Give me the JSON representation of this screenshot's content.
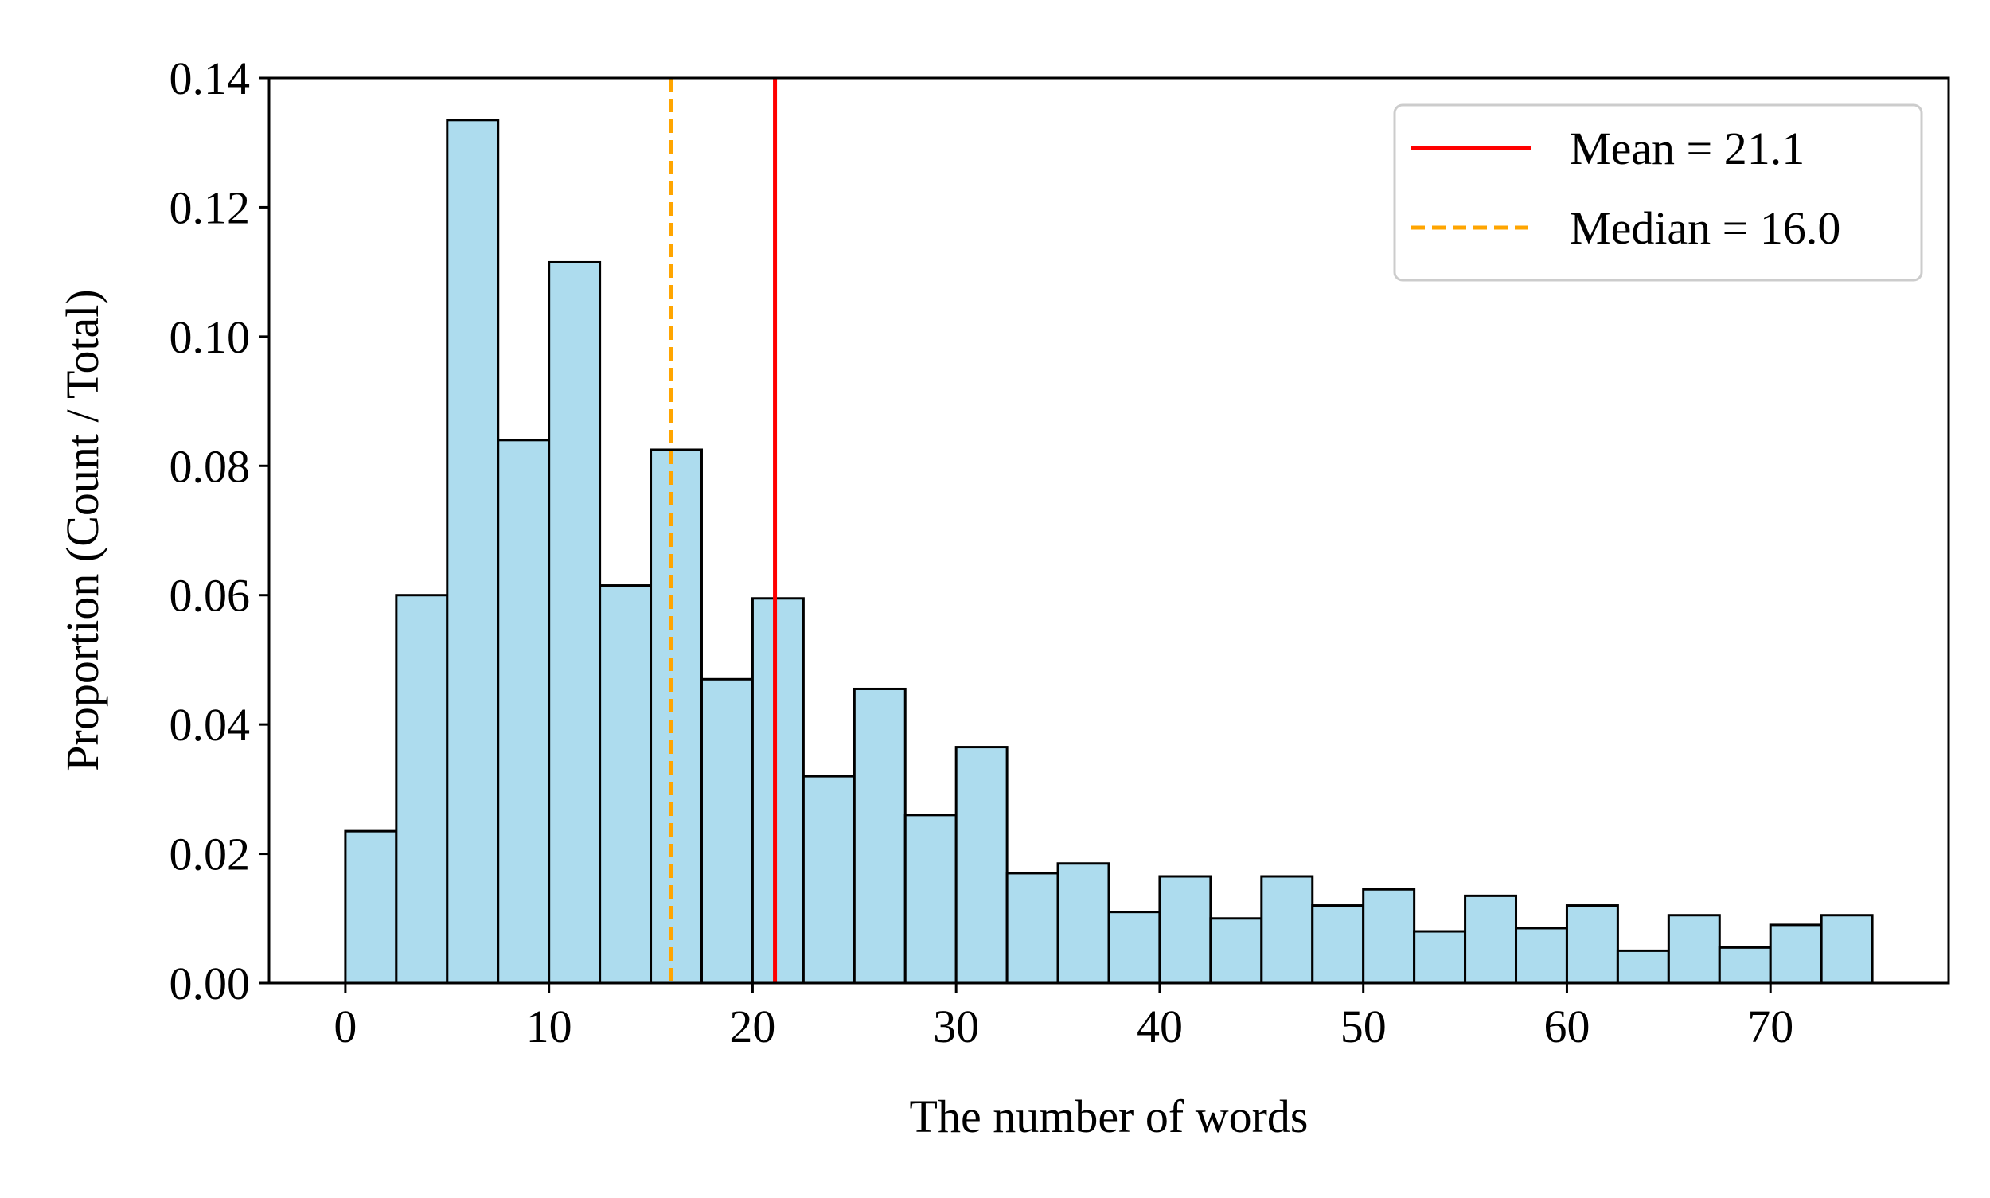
{
  "chart_data": {
    "type": "bar",
    "subtype": "histogram",
    "xlabel": "The number of words",
    "ylabel": "Proportion (Count / Total)",
    "xlim": [
      -3.75,
      78.75
    ],
    "ylim": [
      0,
      0.14
    ],
    "xticks": [
      0,
      10,
      20,
      30,
      40,
      50,
      60,
      70
    ],
    "xtick_labels": [
      "0",
      "10",
      "20",
      "30",
      "40",
      "50",
      "60",
      "70"
    ],
    "yticks": [
      0,
      0.02,
      0.04,
      0.06,
      0.08,
      0.1,
      0.12,
      0.14
    ],
    "ytick_labels": [
      "0.00",
      "0.02",
      "0.04",
      "0.06",
      "0.08",
      "0.10",
      "0.12",
      "0.14"
    ],
    "bin_edges": [
      0,
      2.5,
      5,
      7.5,
      10,
      12.5,
      15,
      17.5,
      20,
      22.5,
      25,
      27.5,
      30,
      32.5,
      35,
      37.5,
      40,
      42.5,
      45,
      47.5,
      50,
      52.5,
      55,
      57.5,
      60,
      62.5,
      65,
      67.5,
      70,
      72.5,
      75
    ],
    "values": [
      0.0235,
      0.06,
      0.1335,
      0.084,
      0.1115,
      0.0615,
      0.0825,
      0.047,
      0.0595,
      0.032,
      0.0455,
      0.026,
      0.0365,
      0.017,
      0.0185,
      0.011,
      0.0165,
      0.01,
      0.0165,
      0.012,
      0.0145,
      0.008,
      0.0135,
      0.0085,
      0.012,
      0.005,
      0.0105,
      0.0055,
      0.009,
      0.0105
    ],
    "bar_color": "#ADDCEE",
    "edge_color": "#000000",
    "reference_lines": [
      {
        "name": "Mean = 21.1",
        "x": 21.1,
        "color": "#FF0000",
        "style": "solid"
      },
      {
        "name": "Median = 16.0",
        "x": 16.0,
        "color": "#FFA500",
        "style": "dashed"
      }
    ],
    "legend_position": "top-right",
    "grid": false
  }
}
